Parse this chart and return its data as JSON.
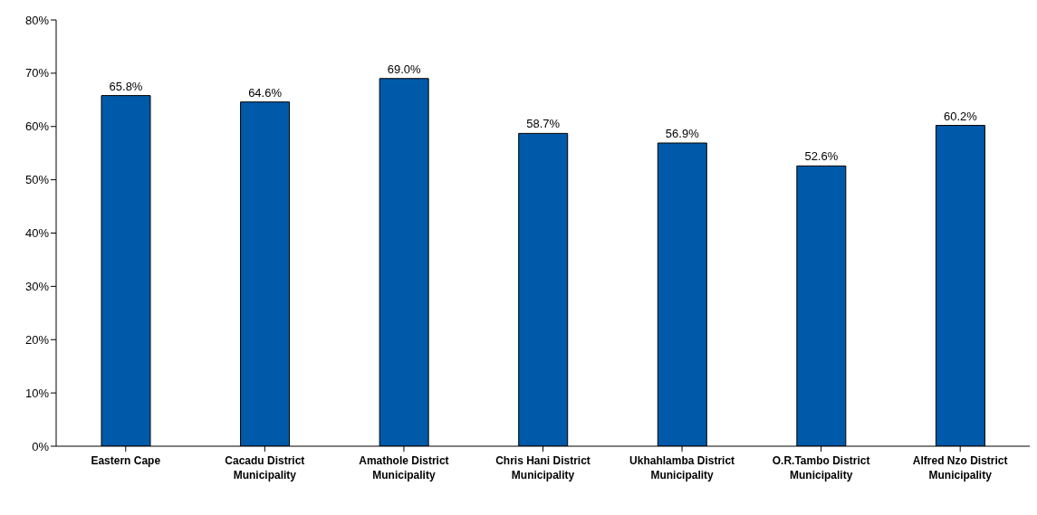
{
  "chart_data": {
    "type": "bar",
    "categories": [
      "Eastern Cape",
      "Cacadu District Municipality",
      "Amathole District Municipality",
      "Chris Hani District Municipality",
      "Ukhahlamba District Municipality",
      "O.R.Tambo District Municipality",
      "Alfred Nzo District Municipality"
    ],
    "values": [
      65.8,
      64.6,
      69.0,
      58.7,
      56.9,
      52.6,
      60.2
    ],
    "value_labels": [
      "65.8%",
      "64.6%",
      "69.0%",
      "58.7%",
      "56.9%",
      "52.6%",
      "60.2%"
    ],
    "color": "#005aa9",
    "ylim": [
      0,
      80
    ],
    "yticks": [
      {
        "value": 0,
        "label": "0%"
      },
      {
        "value": 10,
        "label": "10%"
      },
      {
        "value": 20,
        "label": "20%"
      },
      {
        "value": 30,
        "label": "30%"
      },
      {
        "value": 40,
        "label": "40%"
      },
      {
        "value": 50,
        "label": "50%"
      },
      {
        "value": 60,
        "label": "60%"
      },
      {
        "value": 70,
        "label": "70%"
      },
      {
        "value": 80,
        "label": "80%"
      }
    ],
    "grid": false,
    "legend": false
  }
}
